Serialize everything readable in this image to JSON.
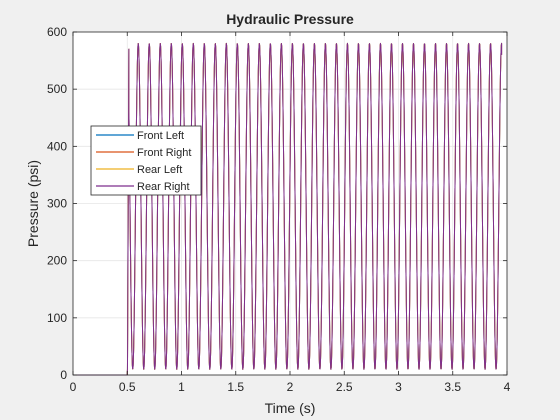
{
  "chart_data": {
    "type": "line",
    "title": "Hydraulic Pressure",
    "xlabel": "Time (s)",
    "ylabel": "Pressure (psi)",
    "xlim": [
      0,
      4
    ],
    "ylim": [
      0,
      600
    ],
    "xticks": [
      0,
      0.5,
      1,
      1.5,
      2,
      2.5,
      3,
      3.5,
      4
    ],
    "xtick_labels": [
      "0",
      "0.5",
      "1",
      "1.5",
      "2",
      "2.5",
      "3",
      "3.5",
      "4"
    ],
    "yticks": [
      0,
      100,
      200,
      300,
      400,
      500,
      600
    ],
    "ytick_labels": [
      "0",
      "100",
      "200",
      "300",
      "400",
      "500",
      "600"
    ],
    "grid": true,
    "legend_position": "left, near middle",
    "signal": {
      "initial_value": 0,
      "start_time": 0.5,
      "peak": 580,
      "trough": 10,
      "cycle_count": 34,
      "end_time": 3.95,
      "end_value": 560
    },
    "series": [
      {
        "name": "Front Left",
        "color": "#0072bd"
      },
      {
        "name": "Front Right",
        "color": "#d95319"
      },
      {
        "name": "Rear Left",
        "color": "#edb120"
      },
      {
        "name": "Rear Right",
        "color": "#7e2f8e"
      }
    ]
  }
}
